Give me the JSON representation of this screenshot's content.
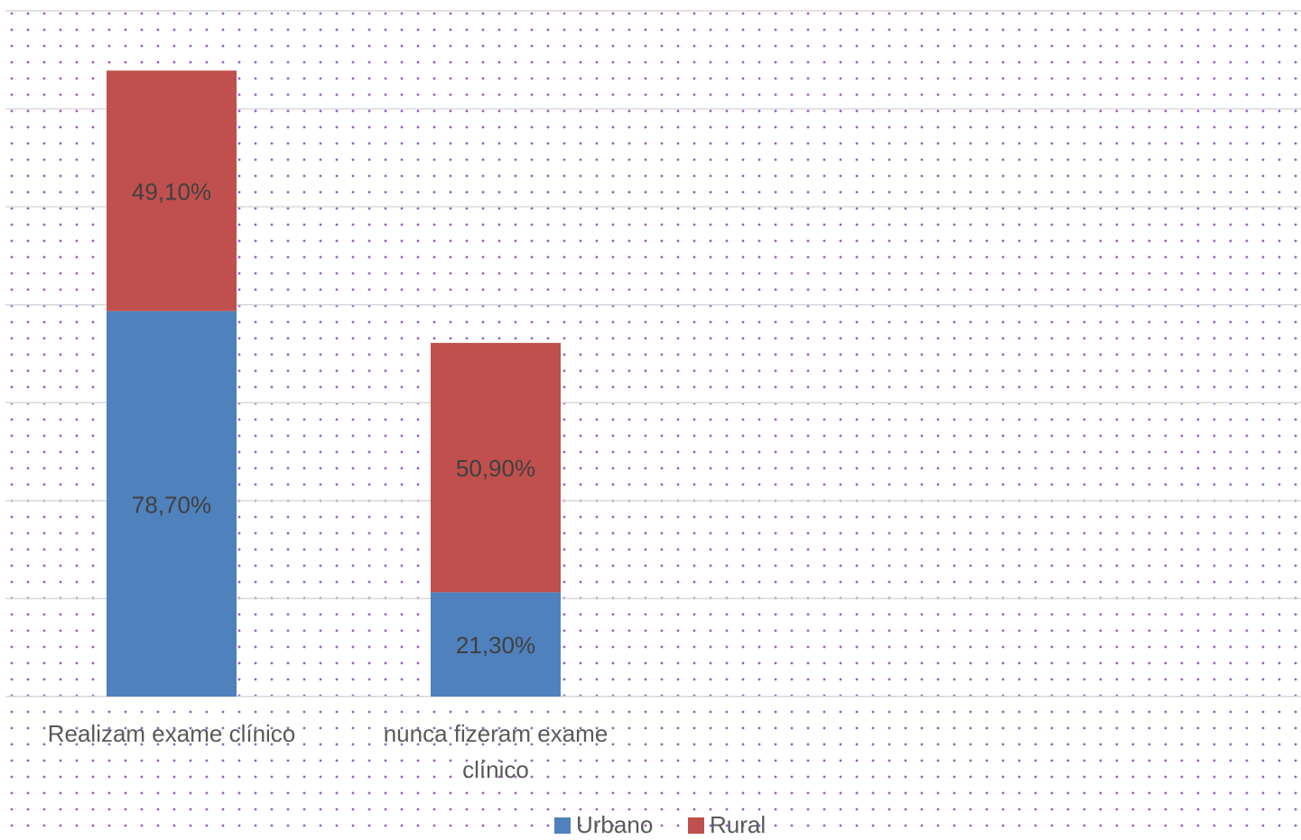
{
  "chart_data": {
    "type": "bar",
    "stacked": true,
    "categories": [
      "Realizam exame clínico",
      "nunca fizeram exame clínico"
    ],
    "series": [
      {
        "name": "Urbano",
        "color": "#4f81bd",
        "values": [
          78.7,
          21.3
        ],
        "labels": [
          "78,70%",
          "21,30%"
        ]
      },
      {
        "name": "Rural",
        "color": "#c0504d",
        "values": [
          49.1,
          50.9
        ],
        "labels": [
          "49,10%",
          "50,90%"
        ]
      }
    ],
    "title": "",
    "xlabel": "",
    "ylabel": "",
    "ylim": [
      0,
      140
    ],
    "grid": true,
    "legend": "bottom"
  }
}
